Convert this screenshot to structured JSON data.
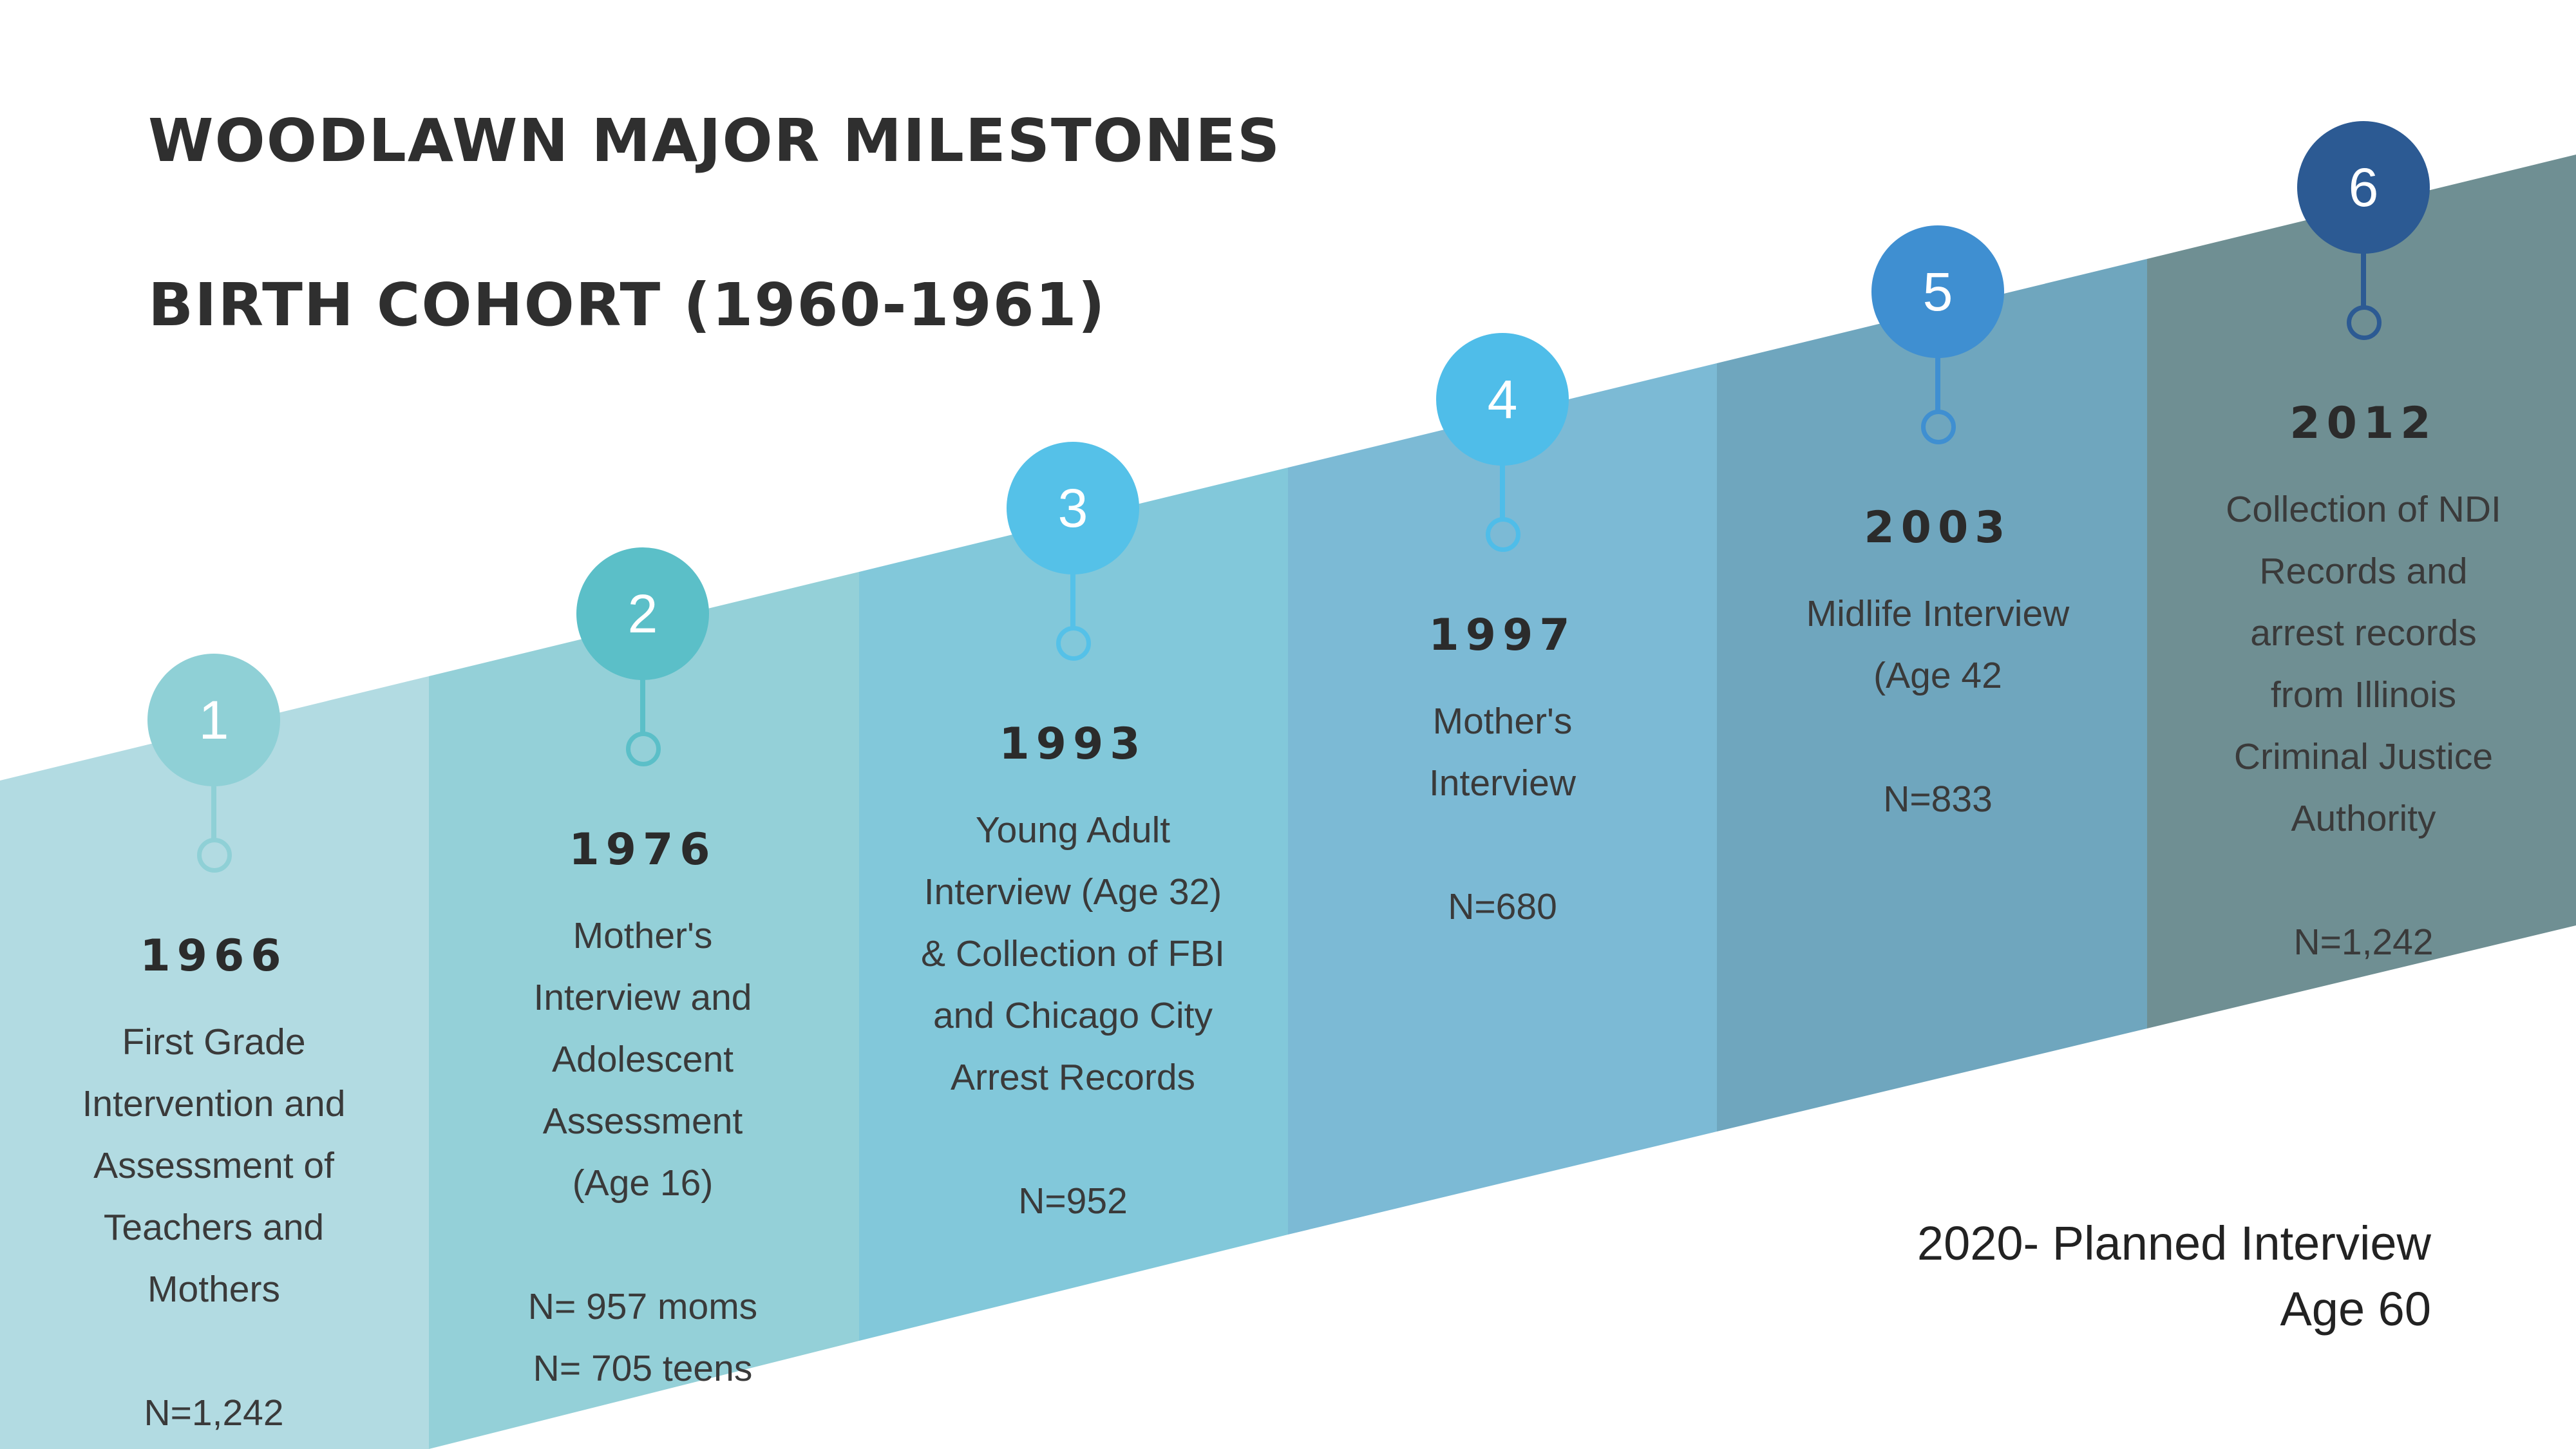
{
  "title_line1": "WOODLAWN MAJOR MILESTONES",
  "title_line2": "BIRTH COHORT (1960-1961)",
  "colors": {
    "band1": "#b2dbe2",
    "band2": "#94d0d8",
    "band3": "#82c8da",
    "band4": "#7cbad5",
    "band5": "#6fa6be",
    "band6": "#6f8f93",
    "marker1": "#8fd0d6",
    "marker2": "#5bbfc8",
    "marker3": "#55c1e8",
    "marker4": "#4fbde9",
    "marker5": "#3f8fd1",
    "marker6": "#2c5a93"
  },
  "milestones": [
    {
      "number": "1",
      "year": "1966",
      "description": "First Grade\nIntervention and\nAssessment of\nTeachers and\nMothers\n\nN=1,242"
    },
    {
      "number": "2",
      "year": "1976",
      "description": "Mother's\nInterview and\nAdolescent\nAssessment\n(Age 16)\n\nN= 957 moms\nN= 705 teens"
    },
    {
      "number": "3",
      "year": "1993",
      "description": "Young Adult\nInterview (Age 32)\n& Collection of FBI\nand Chicago City\nArrest Records\n\nN=952"
    },
    {
      "number": "4",
      "year": "1997",
      "description": "Mother's\nInterview\n\nN=680"
    },
    {
      "number": "5",
      "year": "2003",
      "description": "Midlife Interview\n(Age 42\n\nN=833"
    },
    {
      "number": "6",
      "year": "2012",
      "description": "Collection of NDI\nRecords and\narrest records\nfrom Illinois\nCriminal Justice\nAuthority\n\nN=1,242"
    }
  ],
  "planned_note": "2020- Planned Interview\nAge 60"
}
